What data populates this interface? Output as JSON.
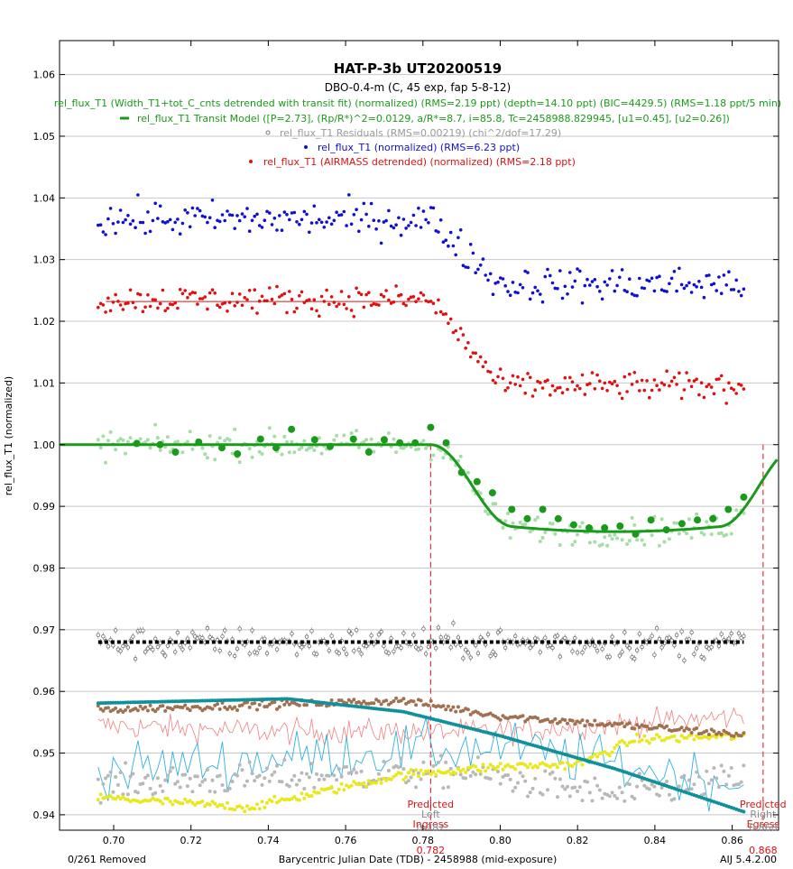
{
  "title": "HAT-P-3b UT20200519",
  "subtitle": "DBO-0.4-m (C, 45 exp, fap 5-8-12)",
  "legend": [
    {
      "text": "rel_flux_T1 (Width_T1+tot_C_cnts detrended with transit fit) (normalized) (RMS=2.19 ppt) (depth=14.10 ppt) (BIC=4429.5) (RMS=1.18 ppt/5 min)",
      "color": "#1a9a1a"
    },
    {
      "text": "rel_flux_T1 Transit Model ([P=2.73], (Rp/R*)^2=0.0129, a/R*=8.7, i=85.8, Tc=2458988.829945, [u1=0.45], [u2=0.26])",
      "color": "#1a9a1a"
    },
    {
      "text": "rel_flux_T1 Residuals (RMS=0.00219) (chi^2/dof=17.29)",
      "color": "#9a9a9a"
    },
    {
      "text": "rel_flux_T1 (normalized) (RMS=6.23 ppt)",
      "color": "#1010d0"
    },
    {
      "text": "rel_flux_T1 (AIRMASS detrended) (normalized) (RMS=2.18 ppt)",
      "color": "#e01010"
    }
  ],
  "footer_left": "0/261 Removed",
  "footer_right": "AIJ 5.4.2.00",
  "chart_data": {
    "type": "scatter",
    "xlabel": "Barycentric Julian Date (TDB) - 2458988 (mid-exposure)",
    "ylabel": "rel_flux_T1 (normalized)",
    "xlim": [
      0.686,
      0.872
    ],
    "ylim": [
      0.9375,
      1.0655
    ],
    "x_ticks": [
      "0.70",
      "0.72",
      "0.74",
      "0.76",
      "0.78",
      "0.80",
      "0.82",
      "0.84",
      "0.86"
    ],
    "y_ticks": [
      "0.94",
      "0.95",
      "0.96",
      "0.97",
      "0.98",
      "0.99",
      "1.00",
      "1.01",
      "1.02",
      "1.03",
      "1.04",
      "1.05",
      "1.06"
    ],
    "grid": true,
    "markers": [
      {
        "label": [
          "Predicted",
          "Left",
          "Ingress"
        ],
        "value_label": "0.782",
        "x": 0.782
      },
      {
        "label": [
          "Predicted",
          "Right",
          "Egress"
        ],
        "value_label": "0.868",
        "x": 0.868
      }
    ],
    "colors": {
      "green": "#1a9a1a",
      "light_green": "#a6dca6",
      "blue": "#1010d0",
      "red": "#e01010",
      "gray": "#7a7a7a",
      "brown": "#a07050",
      "teal": "#10909a",
      "yellow": "#e8e820",
      "light_gray": "#b8b8b8",
      "cyan": "#30b0e0",
      "pink": "#f08080"
    },
    "series": [
      {
        "name": "rel_flux_T1 (normalized) (RMS=6.23 ppt)",
        "x_range": [
          0.696,
          0.863
        ],
        "levels": [
          [
            0.696,
            1.0365
          ],
          [
            0.782,
            1.0365
          ],
          [
            0.8,
            1.026
          ],
          [
            0.863,
            1.026
          ]
        ],
        "scatter": 0.0028
      },
      {
        "name": "rel_flux_T1 (AIRMASS detrended) (normalized) (RMS=2.18 ppt)",
        "x_range": [
          0.696,
          0.863
        ],
        "levels": [
          [
            0.696,
            1.0235
          ],
          [
            0.782,
            1.0235
          ],
          [
            0.8,
            1.0095
          ],
          [
            0.863,
            1.0095
          ]
        ],
        "scatter": 0.0022,
        "fit_line": [
          [
            0.698,
            1.0232
          ],
          [
            0.78,
            1.0232
          ]
        ]
      },
      {
        "name": "rel_flux_T1 (Width_T1+tot_C_cnts detrended with transit fit) (normalized)",
        "x_range": [
          0.696,
          0.863
        ],
        "binned_points": [
          [
            0.706,
            1.0002
          ],
          [
            0.712,
            1.0
          ],
          [
            0.716,
            0.9988
          ],
          [
            0.722,
            1.0004
          ],
          [
            0.728,
            0.9995
          ],
          [
            0.732,
            0.9985
          ],
          [
            0.738,
            1.0009
          ],
          [
            0.742,
            0.9995
          ],
          [
            0.746,
            1.0025
          ],
          [
            0.752,
            1.0008
          ],
          [
            0.756,
            0.9997
          ],
          [
            0.762,
            1.0009
          ],
          [
            0.766,
            0.9988
          ],
          [
            0.77,
            1.0008
          ],
          [
            0.774,
            1.0003
          ],
          [
            0.778,
            1.0003
          ],
          [
            0.782,
            1.0028
          ],
          [
            0.786,
            1.0003
          ],
          [
            0.79,
            0.9955
          ],
          [
            0.794,
            0.994
          ],
          [
            0.798,
            0.9922
          ],
          [
            0.803,
            0.9895
          ],
          [
            0.807,
            0.988
          ],
          [
            0.811,
            0.9895
          ],
          [
            0.815,
            0.988
          ],
          [
            0.819,
            0.987
          ],
          [
            0.823,
            0.9865
          ],
          [
            0.827,
            0.9865
          ],
          [
            0.831,
            0.9868
          ],
          [
            0.835,
            0.9855
          ],
          [
            0.839,
            0.9878
          ],
          [
            0.843,
            0.9862
          ],
          [
            0.847,
            0.9872
          ],
          [
            0.851,
            0.9878
          ],
          [
            0.855,
            0.988
          ],
          [
            0.859,
            0.9895
          ],
          [
            0.863,
            0.9915
          ]
        ]
      },
      {
        "name": "rel_flux_T1 Transit Model",
        "model": {
          "depth": 0.0141,
          "tc": 0.829945,
          "t1": 0.782,
          "t2": 0.8035,
          "t3": 0.8565,
          "t4": 0.8775,
          "baseline": 1.0
        }
      },
      {
        "name": "rel_flux_T1 Residuals (RMS=0.00219) (chi^2/dof=17.29)",
        "x_range": [
          0.696,
          0.863
        ],
        "level": 0.9678,
        "scatter": 0.0025,
        "fit_line": [
          [
            0.696,
            0.968
          ],
          [
            0.863,
            0.968
          ]
        ]
      },
      {
        "name": "brown_aux",
        "x_range": [
          0.696,
          0.863
        ],
        "levels": [
          [
            0.696,
            0.957
          ],
          [
            0.775,
            0.9585
          ],
          [
            0.8,
            0.956
          ],
          [
            0.863,
            0.953
          ]
        ],
        "scatter": 0.0006
      },
      {
        "name": "teal_aux",
        "curve": [
          [
            0.696,
            0.9581
          ],
          [
            0.745,
            0.9588
          ],
          [
            0.775,
            0.9567
          ],
          [
            0.8,
            0.9528
          ],
          [
            0.83,
            0.9474
          ],
          [
            0.863,
            0.9405
          ]
        ]
      },
      {
        "name": "yellow_aux",
        "x_range": [
          0.696,
          0.863
        ],
        "levels": [
          [
            0.696,
            0.9428
          ],
          [
            0.735,
            0.9412
          ],
          [
            0.775,
            0.9465
          ],
          [
            0.8,
            0.9478
          ],
          [
            0.82,
            0.9482
          ],
          [
            0.835,
            0.9522
          ],
          [
            0.863,
            0.9528
          ]
        ],
        "scatter": 0.0007
      },
      {
        "name": "light_gray_aux",
        "x_range": [
          0.696,
          0.863
        ],
        "levels": [
          [
            0.696,
            0.945
          ],
          [
            0.79,
            0.947
          ],
          [
            0.83,
            0.943
          ],
          [
            0.863,
            0.946
          ]
        ],
        "scatter": 0.0025
      },
      {
        "name": "cyan_aux",
        "x_range": [
          0.696,
          0.863
        ],
        "levels": [
          [
            0.696,
            0.947
          ],
          [
            0.76,
            0.95
          ],
          [
            0.8,
            0.951
          ],
          [
            0.863,
            0.945
          ]
        ],
        "scatter": 0.0042
      },
      {
        "name": "pink_aux",
        "x_range": [
          0.696,
          0.863
        ],
        "levels": [
          [
            0.696,
            0.9545
          ],
          [
            0.74,
            0.9535
          ],
          [
            0.8,
            0.9535
          ],
          [
            0.863,
            0.956
          ]
        ],
        "scatter": 0.002
      }
    ]
  }
}
